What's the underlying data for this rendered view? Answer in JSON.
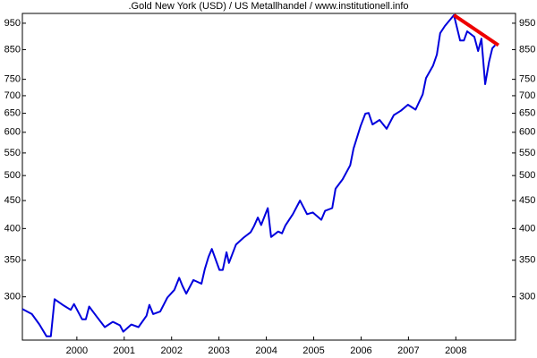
{
  "chart_data": {
    "type": "line",
    "title": ".Gold New York (USD) / US Metallhandel / www.institutionell.info",
    "log_y": true,
    "xlim": [
      1998.85,
      2009.26
    ],
    "xticks": [
      2000,
      2001,
      2002,
      2003,
      2004,
      2005,
      2006,
      2007,
      2008
    ],
    "ylim": [
      250,
      990
    ],
    "yticks": [
      300,
      350,
      400,
      450,
      500,
      550,
      600,
      650,
      700,
      750,
      850,
      950
    ],
    "x": [
      1998.85,
      1999.05,
      1999.21,
      1999.36,
      1999.45,
      1999.53,
      1999.7,
      1999.87,
      1999.94,
      2000.11,
      2000.19,
      2000.26,
      2000.42,
      2000.59,
      2000.76,
      2000.91,
      2000.98,
      2001.15,
      2001.3,
      2001.47,
      2001.53,
      2001.61,
      2001.76,
      2001.91,
      2002.06,
      2002.16,
      2002.23,
      2002.31,
      2002.46,
      2002.63,
      2002.7,
      2002.78,
      2002.85,
      2003.01,
      2003.08,
      2003.16,
      2003.21,
      2003.36,
      2003.52,
      2003.67,
      2003.74,
      2003.82,
      2003.89,
      2004.03,
      2004.1,
      2004.25,
      2004.33,
      2004.4,
      2004.56,
      2004.71,
      2004.86,
      2004.98,
      2005.16,
      2005.24,
      2005.39,
      2005.46,
      2005.61,
      2005.77,
      2005.84,
      2005.99,
      2006.09,
      2006.16,
      2006.24,
      2006.39,
      2006.54,
      2006.69,
      2006.84,
      2006.99,
      2007.15,
      2007.3,
      2007.37,
      2007.52,
      2007.6,
      2007.67,
      2007.77,
      2007.96,
      2008.09,
      2008.17,
      2008.24,
      2008.39,
      2008.47,
      2008.54,
      2008.62,
      2008.7,
      2008.77,
      2008.83
    ],
    "series": [
      {
        "color": "#0000dd",
        "values": [
          285,
          279,
          267,
          254,
          254,
          297,
          290,
          284,
          291,
          273,
          273,
          288,
          276,
          264,
          270,
          266,
          259,
          267,
          264,
          277,
          290,
          279,
          282,
          299,
          309,
          325,
          314,
          304,
          322,
          317,
          337,
          355,
          367,
          336,
          336,
          362,
          346,
          374,
          385,
          394,
          404,
          419,
          406,
          436,
          386,
          395,
          392,
          405,
          425,
          450,
          425,
          428,
          415,
          431,
          436,
          473,
          492,
          522,
          560,
          616,
          649,
          651,
          620,
          632,
          609,
          645,
          657,
          674,
          660,
          704,
          754,
          795,
          832,
          911,
          939,
          983,
          883,
          883,
          918,
          897,
          845,
          890,
          735,
          807,
          855,
          866
        ]
      }
    ],
    "trendline": {
      "color": "#ee0000",
      "x": [
        2007.96,
        2008.9
      ],
      "values": [
        983,
        866
      ]
    }
  }
}
